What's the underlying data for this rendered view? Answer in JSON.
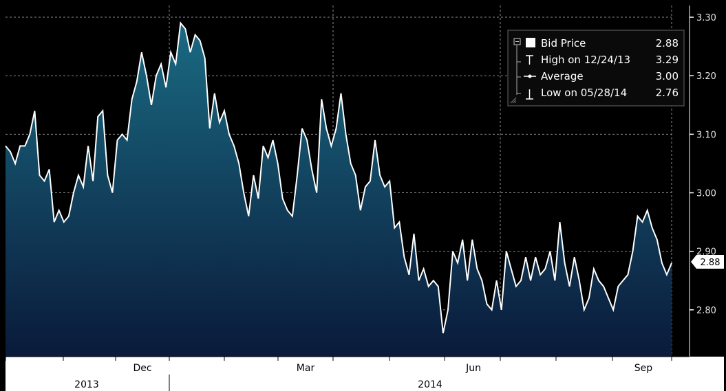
{
  "chart_data": {
    "type": "area",
    "title": "",
    "xlabel": "",
    "ylabel": "",
    "ylim": [
      2.72,
      3.32
    ],
    "yticks": [
      "3.30",
      "3.20",
      "3.10",
      "3.00",
      "2.90",
      "2.80"
    ],
    "y_tick_values": [
      3.3,
      3.2,
      3.1,
      3.0,
      2.9,
      2.8
    ],
    "month_labels": [
      "Dec",
      "Mar",
      "Jun",
      "Sep"
    ],
    "year_labels": [
      "2013",
      "2014"
    ],
    "legend_position": "top-right",
    "grid": true,
    "current_value_label": "2.88",
    "colors": {
      "line": "#ffffff",
      "fill_top": "#1a6a82",
      "fill_bottom": "#0a1a3a",
      "grid": "#8a8a8a",
      "background": "#000000"
    },
    "legend": {
      "entries": [
        {
          "label": "Bid Price",
          "value": "2.88",
          "icon": "square-icon"
        },
        {
          "label": "High on 12/24/13",
          "value": "3.29",
          "icon": "high-marker-icon"
        },
        {
          "label": "Average",
          "value": "3.00",
          "icon": "average-marker-icon"
        },
        {
          "label": "Low on 05/28/14",
          "value": "2.76",
          "icon": "low-marker-icon"
        }
      ]
    },
    "series": [
      {
        "values": [
          3.08,
          3.07,
          3.05,
          3.08,
          3.08,
          3.1,
          3.14,
          3.03,
          3.02,
          3.04,
          2.95,
          2.97,
          2.95,
          2.96,
          3.0,
          3.03,
          3.01,
          3.08,
          3.02,
          3.13,
          3.14,
          3.03,
          3.0,
          3.09,
          3.1,
          3.09,
          3.16,
          3.19,
          3.24,
          3.2,
          3.15,
          3.2,
          3.22,
          3.18,
          3.24,
          3.22,
          3.29,
          3.28,
          3.24,
          3.27,
          3.26,
          3.23,
          3.11,
          3.17,
          3.12,
          3.14,
          3.1,
          3.08,
          3.05,
          3.0,
          2.96,
          3.03,
          2.99,
          3.08,
          3.06,
          3.09,
          3.05,
          2.99,
          2.97,
          2.96,
          3.03,
          3.11,
          3.09,
          3.04,
          3.0,
          3.16,
          3.11,
          3.08,
          3.11,
          3.17,
          3.1,
          3.05,
          3.03,
          2.97,
          3.01,
          3.02,
          3.09,
          3.03,
          3.01,
          3.02,
          2.94,
          2.95,
          2.89,
          2.86,
          2.93,
          2.85,
          2.87,
          2.84,
          2.85,
          2.84,
          2.76,
          2.8,
          2.9,
          2.88,
          2.92,
          2.85,
          2.92,
          2.87,
          2.85,
          2.81,
          2.8,
          2.85,
          2.8,
          2.9,
          2.87,
          2.84,
          2.85,
          2.89,
          2.85,
          2.89,
          2.86,
          2.87,
          2.9,
          2.85,
          2.95,
          2.88,
          2.84,
          2.89,
          2.85,
          2.8,
          2.82,
          2.87,
          2.85,
          2.84,
          2.82,
          2.8,
          2.84,
          2.85,
          2.86,
          2.9,
          2.96,
          2.95,
          2.97,
          2.94,
          2.92,
          2.88,
          2.86,
          2.88
        ]
      }
    ]
  }
}
